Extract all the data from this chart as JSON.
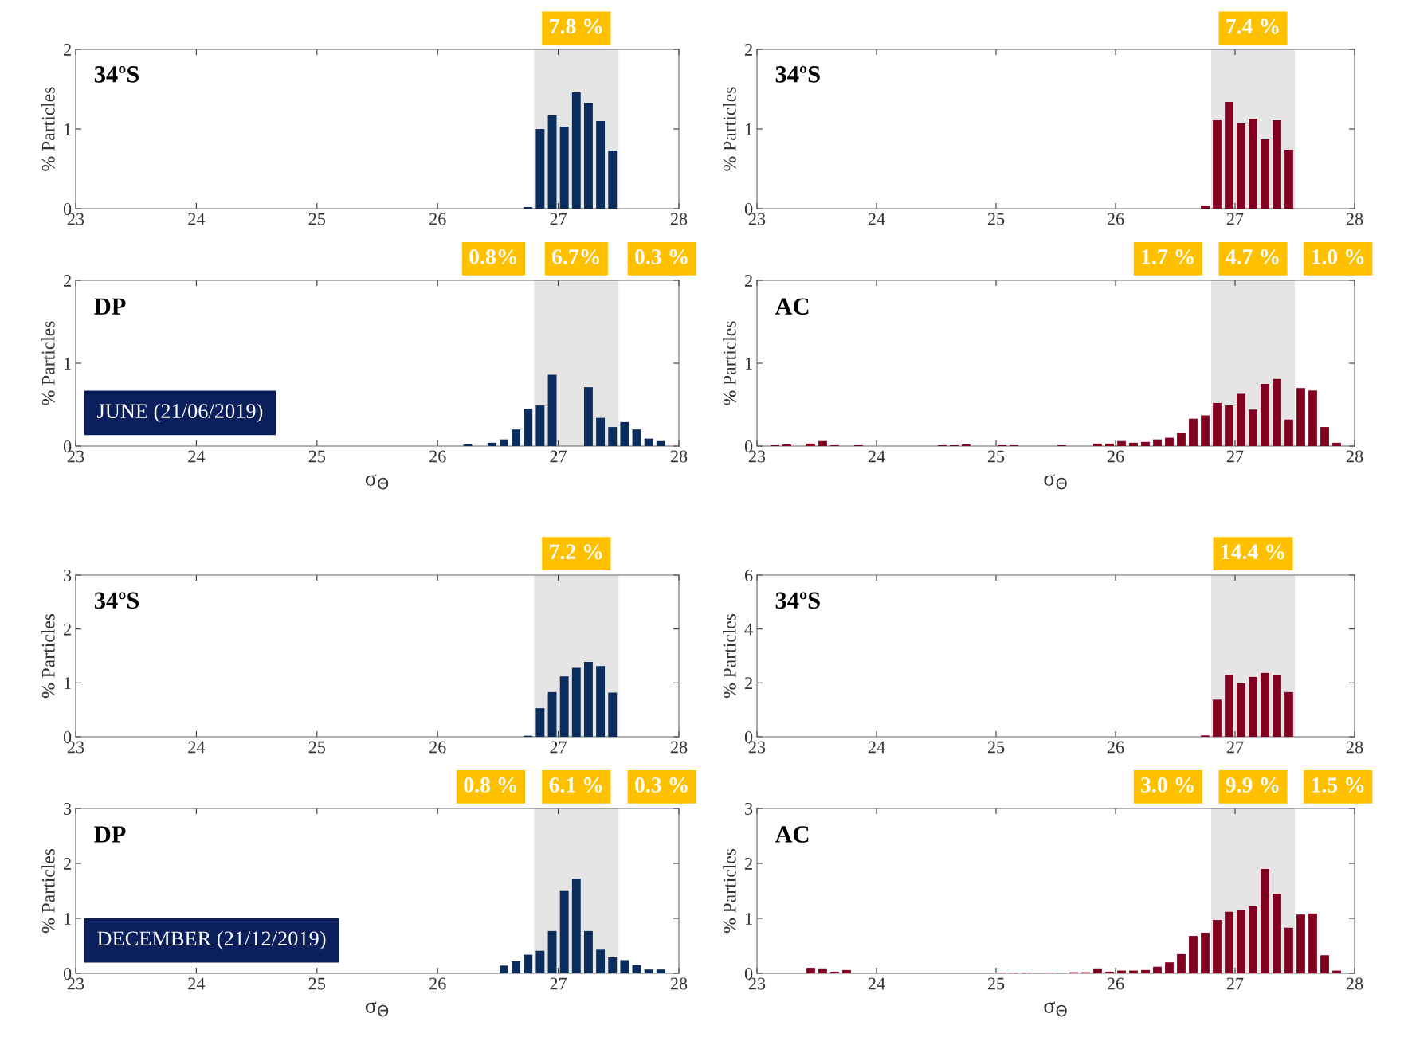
{
  "chart_data": [
    {
      "type": "histogram",
      "title": "34ºS",
      "ylabel": "% Particles",
      "color": "#0a2d5e",
      "xlim": [
        23,
        28
      ],
      "xticks": [
        23,
        24,
        25,
        26,
        27,
        28
      ],
      "ylim": [
        0,
        2
      ],
      "yticks": [
        0,
        1,
        2
      ],
      "bins": [
        26.7,
        26.8,
        26.9,
        27.0,
        27.1,
        27.2,
        27.3,
        27.4,
        27.5
      ],
      "values": [
        0.02,
        1.0,
        1.17,
        1.03,
        1.46,
        1.33,
        1.1,
        0.73
      ],
      "bands": [
        {
          "axis": "x",
          "from": 26.8,
          "to": 27.5,
          "label": "7.8 %",
          "color": "#e5e5e5"
        }
      ]
    },
    {
      "type": "histogram",
      "title": "34ºS",
      "ylabel": "% Particles",
      "color": "#800020",
      "xlim": [
        23,
        28
      ],
      "xticks": [
        23,
        24,
        25,
        26,
        27,
        28
      ],
      "ylim": [
        0,
        2
      ],
      "yticks": [
        0,
        1,
        2
      ],
      "bins": [
        26.7,
        26.8,
        26.9,
        27.0,
        27.1,
        27.2,
        27.3,
        27.4,
        27.5
      ],
      "values": [
        0.04,
        1.11,
        1.34,
        1.07,
        1.13,
        0.87,
        1.11,
        0.74
      ],
      "bands": [
        {
          "axis": "x",
          "from": 26.8,
          "to": 27.5,
          "label": "7.4 %",
          "color": "#e5e5e5"
        }
      ]
    },
    {
      "type": "histogram",
      "title": "DP",
      "subtitle": "JUNE (21/06/2019)",
      "xlabel": "σ$_{Θ}$",
      "ylabel": "% Particles",
      "color": "#0a2d5e",
      "xlim": [
        23,
        28
      ],
      "xticks": [
        23,
        24,
        25,
        26,
        27,
        28
      ],
      "ylim": [
        0,
        2
      ],
      "yticks": [
        0,
        1,
        2
      ],
      "bins": [
        26.2,
        26.3,
        26.4,
        26.5,
        26.6,
        26.7,
        26.8,
        26.9,
        27.0,
        27.1,
        27.2,
        27.3,
        27.4,
        27.5,
        27.6,
        27.7,
        27.8,
        27.9
      ],
      "values": [
        0.02,
        0,
        0.04,
        0.08,
        0.2,
        0.45,
        0.49,
        0.86,
        null,
        null,
        0.71,
        0.34,
        0.23,
        0.29,
        0.2,
        0.09,
        0.06
      ],
      "bands": [
        {
          "axis": "x",
          "from": 26.8,
          "to": 27.5,
          "label": "6.7%",
          "color": "#e5e5e5"
        }
      ],
      "annotations": [
        "0.8%",
        "0.3 %"
      ]
    },
    {
      "type": "histogram",
      "title": "AC",
      "xlabel": "σ$_{Θ}$",
      "ylabel": "% Particles",
      "color": "#800020",
      "xlim": [
        23,
        28
      ],
      "xticks": [
        23,
        24,
        25,
        26,
        27,
        28
      ],
      "ylim": [
        0,
        2
      ],
      "yticks": [
        0,
        1,
        2
      ],
      "bins": [
        23.0,
        23.1,
        23.2,
        23.3,
        23.4,
        23.5,
        23.6,
        23.7,
        23.8,
        23.9,
        24.0,
        24.1,
        24.2,
        24.3,
        24.4,
        24.5,
        24.6,
        24.7,
        24.8,
        24.9,
        25.0,
        25.1,
        25.2,
        25.3,
        25.4,
        25.5,
        25.6,
        25.7,
        25.8,
        25.9,
        26.0,
        26.1,
        26.2,
        26.3,
        26.4,
        26.5,
        26.6,
        26.7,
        26.8,
        26.9,
        27.0,
        27.1,
        27.2,
        27.3,
        27.4,
        27.5,
        27.6,
        27.7,
        27.8,
        27.9,
        28.0
      ],
      "values": [
        0,
        0.01,
        0.02,
        0,
        0.03,
        0.06,
        0.01,
        0,
        0.01,
        0,
        0,
        0,
        0,
        0,
        0,
        0.01,
        0.01,
        0.02,
        0,
        0,
        0.01,
        0.01,
        0,
        0,
        0,
        0.01,
        0,
        0,
        0.03,
        0.03,
        0.06,
        0.04,
        0.05,
        0.08,
        0.1,
        0.16,
        0.33,
        0.37,
        0.52,
        0.49,
        0.63,
        0.44,
        0.75,
        0.81,
        0.32,
        0.7,
        0.67,
        0.23,
        0.04,
        0
      ],
      "bands": [
        {
          "axis": "x",
          "from": 26.8,
          "to": 27.5,
          "label": "4.7 %",
          "color": "#e5e5e5"
        }
      ],
      "annotations": [
        "1.7 %",
        "1.0 %"
      ]
    },
    {
      "type": "histogram",
      "title": "34ºS",
      "ylabel": "% Particles",
      "color": "#0a2d5e",
      "xlim": [
        23,
        28
      ],
      "xticks": [
        23,
        24,
        25,
        26,
        27,
        28
      ],
      "ylim": [
        0,
        3
      ],
      "yticks": [
        0,
        1,
        2,
        3
      ],
      "bins": [
        26.7,
        26.8,
        26.9,
        27.0,
        27.1,
        27.2,
        27.3,
        27.4,
        27.5
      ],
      "values": [
        0.02,
        0.53,
        0.83,
        1.12,
        1.28,
        1.39,
        1.31,
        0.82
      ],
      "bands": [
        {
          "axis": "x",
          "from": 26.8,
          "to": 27.5,
          "label": "7.2 %",
          "color": "#e5e5e5"
        }
      ]
    },
    {
      "type": "histogram",
      "title": "34ºS",
      "ylabel": "% Particles",
      "color": "#800020",
      "xlim": [
        23,
        28
      ],
      "xticks": [
        23,
        24,
        25,
        26,
        27,
        28
      ],
      "ylim": [
        0,
        6
      ],
      "yticks": [
        0,
        2,
        4,
        6
      ],
      "bins": [
        26.7,
        26.8,
        26.9,
        27.0,
        27.1,
        27.2,
        27.3,
        27.4,
        27.5
      ],
      "values": [
        0.05,
        1.38,
        2.29,
        1.99,
        2.22,
        2.37,
        2.28,
        1.66
      ],
      "bands": [
        {
          "axis": "x",
          "from": 26.8,
          "to": 27.5,
          "label": "14.4 %",
          "color": "#e5e5e5"
        }
      ]
    },
    {
      "type": "histogram",
      "title": "DP",
      "subtitle": "DECEMBER (21/12/2019)",
      "xlabel": "σ$_{Θ}$",
      "ylabel": "% Particles",
      "color": "#0a2d5e",
      "xlim": [
        23,
        28
      ],
      "xticks": [
        23,
        24,
        25,
        26,
        27,
        28
      ],
      "ylim": [
        0,
        3
      ],
      "yticks": [
        0,
        1,
        2,
        3
      ],
      "bins": [
        26.5,
        26.6,
        26.7,
        26.8,
        26.9,
        27.0,
        27.1,
        27.2,
        27.3,
        27.4,
        27.5,
        27.6,
        27.7,
        27.8,
        27.9
      ],
      "values": [
        0.14,
        0.22,
        0.34,
        0.41,
        0.77,
        1.51,
        1.72,
        0.77,
        0.43,
        0.29,
        0.24,
        0.15,
        0.07,
        0.07
      ],
      "bands": [
        {
          "axis": "x",
          "from": 26.8,
          "to": 27.5,
          "label": "6.1 %",
          "color": "#e5e5e5"
        }
      ],
      "annotations": [
        "0.8 %",
        "0.3 %"
      ]
    },
    {
      "type": "histogram",
      "title": "AC",
      "xlabel": "σ$_{Θ}$",
      "ylabel": "% Particles",
      "color": "#800020",
      "xlim": [
        23,
        28
      ],
      "xticks": [
        23,
        24,
        25,
        26,
        27,
        28
      ],
      "ylim": [
        0,
        3
      ],
      "yticks": [
        0,
        1,
        2,
        3
      ],
      "bins": [
        23.0,
        23.1,
        23.2,
        23.3,
        23.4,
        23.5,
        23.6,
        23.7,
        23.8,
        23.9,
        24.0,
        24.1,
        24.2,
        24.3,
        24.4,
        24.5,
        24.6,
        24.7,
        24.8,
        24.9,
        25.0,
        25.1,
        25.2,
        25.3,
        25.4,
        25.5,
        25.6,
        25.7,
        25.8,
        25.9,
        26.0,
        26.1,
        26.2,
        26.3,
        26.4,
        26.5,
        26.6,
        26.7,
        26.8,
        26.9,
        27.0,
        27.1,
        27.2,
        27.3,
        27.4,
        27.5,
        27.6,
        27.7,
        27.8,
        27.9,
        28.0
      ],
      "values": [
        0,
        0,
        0,
        0,
        0.1,
        0.09,
        0.03,
        0.06,
        0,
        0,
        0,
        0,
        0,
        0,
        0,
        0,
        0,
        0,
        0,
        0,
        0.01,
        0.01,
        0.01,
        0,
        0.01,
        0,
        0.02,
        0.02,
        0.09,
        0.03,
        0.05,
        0.05,
        0.06,
        0.12,
        0.2,
        0.35,
        0.68,
        0.74,
        0.97,
        1.12,
        1.15,
        1.22,
        1.9,
        1.45,
        0.83,
        1.07,
        1.09,
        0.33,
        0.05,
        0
      ],
      "bands": [
        {
          "axis": "x",
          "from": 26.8,
          "to": 27.5,
          "label": "9.9 %",
          "color": "#e5e5e5"
        }
      ],
      "annotations": [
        "3.0 %",
        "1.5 %"
      ]
    }
  ]
}
